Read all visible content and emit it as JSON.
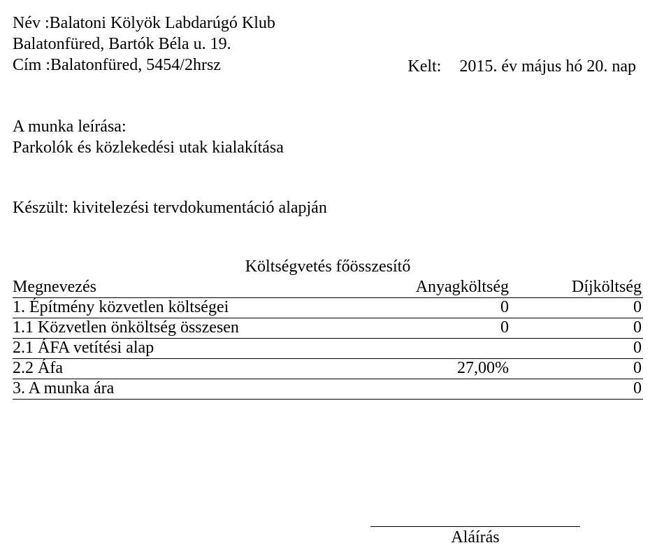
{
  "header": {
    "name_label": "Név :Balatoni Kölyök Labdarúgó Klub",
    "name_line2": "Balatonfüred, Bartók Béla u. 19.",
    "address_label": "Cím :Balatonfüred, 5454/2hrsz",
    "date_label": "Kelt:",
    "date_value": "2015. év május hó 20. nap"
  },
  "work_description": {
    "label": "A munka leírása:",
    "text": "Parkolók és közlekedési utak kialakítása"
  },
  "prepared": {
    "text": "Készült: kivitelezési tervdokumentáció alapján"
  },
  "summary": {
    "title": "Költségvetés főösszesítő",
    "columns": {
      "name": "Megnevezés",
      "material": "Anyagköltség",
      "fee": "Díjköltség"
    },
    "rows": [
      {
        "label": "1. Építmény közvetlen költségei",
        "mid": "0",
        "right": "0"
      },
      {
        "label": "1.1 Közvetlen önköltség összesen",
        "mid": "0",
        "right": "0"
      },
      {
        "label": "2.1 ÁFA vetítési alap",
        "mid": "",
        "right": "0"
      },
      {
        "label": "2.2 Áfa",
        "mid": "27,00%",
        "right": "0"
      },
      {
        "label": "3.  A munka ára",
        "mid": "",
        "right": "0"
      }
    ]
  },
  "signature": {
    "label": "Aláírás"
  }
}
